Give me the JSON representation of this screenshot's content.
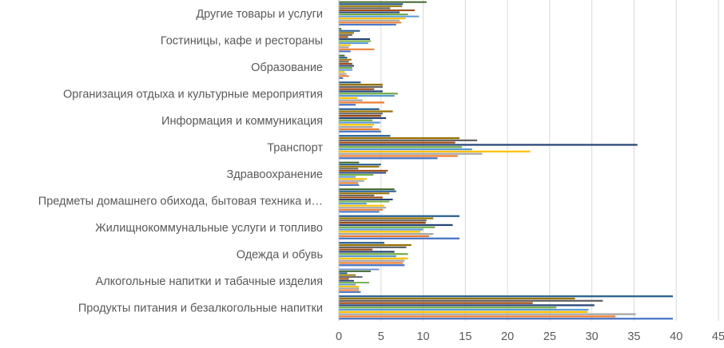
{
  "chart_data": {
    "type": "bar",
    "orientation": "horizontal",
    "title": "",
    "xlabel": "",
    "ylabel": "",
    "xlim": [
      0,
      45
    ],
    "x_ticks": [
      0,
      5,
      10,
      15,
      20,
      25,
      30,
      35,
      40,
      45
    ],
    "grid": true,
    "legend": "none",
    "categories": [
      "Продукты питания и безалкогольные напитки",
      "Алкогольные напитки и табачные изделия",
      "Одежда и обувь",
      "Жилищнокоммунальные услуги и топливо",
      "Предметы домашнего обихода, бытовая техника и…",
      "Здравоохранение",
      "Транспорт",
      "Информация и коммуникация",
      "Организация отдыха и культурные мероприятия",
      "Образование",
      "Гостиницы, кафе и рестораны",
      "Другие товары и услуги"
    ],
    "series_colors": [
      "#4472c4",
      "#ed7d31",
      "#a5a5a5",
      "#ffc000",
      "#5b9bd5",
      "#70ad47",
      "#264478",
      "#9e480e",
      "#636363",
      "#997300",
      "#255e91",
      "#43682b",
      "#698ed0",
      "#f1975a",
      "#b7b7b7",
      "#ffcd33",
      "#7cafdd",
      "#8cc168",
      "#333f50",
      "#1f1f1f",
      "#3b3b3b"
    ],
    "series_values": [
      [
        39.6,
        32.8,
        35.2,
        29.5,
        29.6,
        25.8,
        30.3,
        23.0,
        31.3,
        28.0,
        39.6
      ],
      [
        2.6,
        2.4,
        2.4,
        2.4,
        2.0,
        3.6,
        1.8,
        1.2,
        2.8,
        2.0,
        1.0,
        3.8,
        4.8
      ],
      [
        7.8,
        7.6,
        7.8,
        8.2,
        6.8,
        8.2,
        6.6,
        4.0,
        8.0,
        8.6,
        5.4
      ],
      [
        14.3,
        10.7,
        11.2,
        9.7,
        10.0,
        11.4,
        13.5,
        10.3,
        10.4,
        11.2,
        14.3
      ],
      [
        4.8,
        5.2,
        5.6,
        5.4,
        3.3,
        6.0,
        6.4,
        5.2,
        4.2,
        6.0,
        6.8,
        6.6
      ],
      [
        2.4,
        2.3,
        3.0,
        3.3,
        2.0,
        4.1,
        5.6,
        5.8,
        2.3,
        4.8,
        5.0,
        2.4
      ],
      [
        11.7,
        14.1,
        17.0,
        22.7,
        15.8,
        14.6,
        35.4,
        13.8,
        16.4,
        14.3,
        6.1
      ],
      [
        5.0,
        4.8,
        4.0,
        4.2,
        4.9,
        4.0,
        5.6,
        5.0,
        5.2,
        6.4,
        4.8
      ],
      [
        2.0,
        5.4,
        2.8,
        2.2,
        6.6,
        7.0,
        5.2,
        4.2,
        5.2,
        5.2,
        2.6
      ],
      [
        0.5,
        1.2,
        0.9,
        0.7,
        1.6,
        1.6,
        1.8,
        1.6,
        1.2,
        1.5,
        1.0,
        0.7
      ],
      [
        1.4,
        4.2,
        1.2,
        1.4,
        3.5,
        3.8,
        3.7,
        1.1,
        1.6,
        1.8,
        2.5,
        0.3
      ],
      [
        6.8,
        7.4,
        7.2,
        7.9,
        9.5,
        8.2,
        7.2,
        9.0,
        6.1,
        7.5,
        7.6,
        10.4
      ]
    ]
  }
}
